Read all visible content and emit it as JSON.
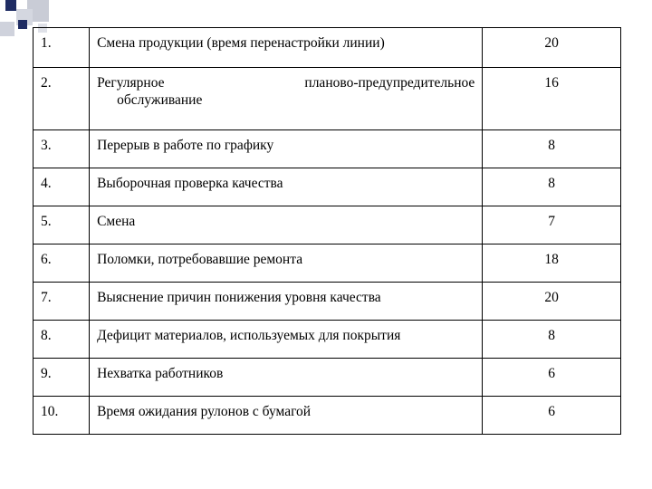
{
  "table": {
    "rows": [
      {
        "num": "1.",
        "desc": "Смена продукции (время перенастройки линии)",
        "value": "20"
      },
      {
        "num": "2.",
        "desc_part1": "Регулярное",
        "desc_part2": "планово-предупредительное",
        "desc_part3": "обслуживание",
        "value": "16"
      },
      {
        "num": "3.",
        "desc": "Перерыв в работе по графику",
        "value": "8"
      },
      {
        "num": "4.",
        "desc": "Выборочная проверка качества",
        "value": "8"
      },
      {
        "num": "5.",
        "desc": "Смена",
        "value": "7"
      },
      {
        "num": "6.",
        "desc": "Поломки, потребовавшие ремонта",
        "value": "18"
      },
      {
        "num": "7.",
        "desc": "Выяснение причин понижения уровня качества",
        "value": "20"
      },
      {
        "num": "8.",
        "desc": "Дефицит материалов, используемых для покрытия",
        "value": "8"
      },
      {
        "num": "9.",
        "desc": "Нехватка работников",
        "value": "6"
      },
      {
        "num": "10.",
        "desc": "Время ожидания рулонов с бумагой",
        "value": "6"
      }
    ]
  }
}
